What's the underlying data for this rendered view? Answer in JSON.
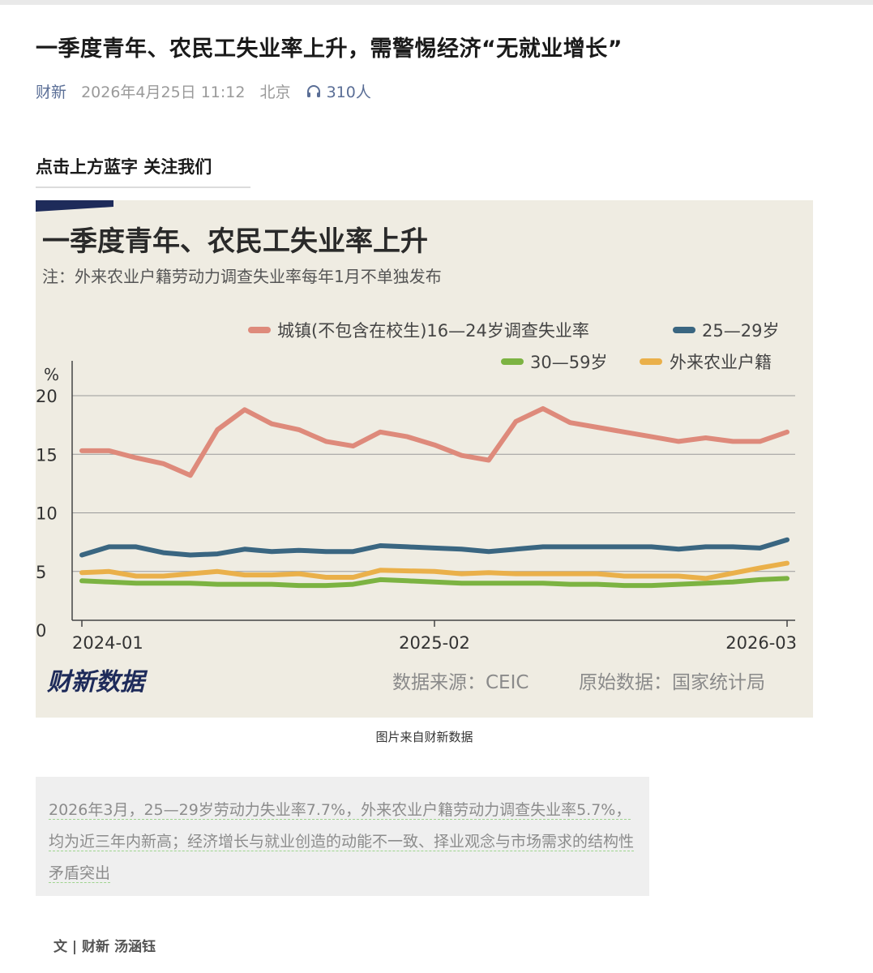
{
  "article": {
    "title": "一季度青年、农民工失业率上升，需警惕经济“无就业增长”",
    "source": "财新",
    "datetime": "2026年4月25日 11:12",
    "location": "北京",
    "listeners": "310人",
    "follow_text": "点击上方蓝字  关注我们",
    "caption": "图片来自财新数据",
    "quote": "2026年3月，25—29岁劳动力失业率7.7%，外来农业户籍劳动力调查失业率5.7%，均为近三年内新高；经济增长与就业创造的动能不一致、择业观念与市场需求的结构性矛盾突出",
    "byline": "文 | 财新 汤涵钰"
  },
  "icons": {
    "listen": "headphones-icon"
  },
  "colors": {
    "chart_bg": "#efece2",
    "series_16_24": "#de8a7b",
    "series_25_29": "#3a6681",
    "series_30_59": "#7cb342",
    "series_migrant": "#eab04a",
    "brand": "#1e2b5a"
  },
  "chart_data": {
    "type": "line",
    "title": "一季度青年、农民工失业率上升",
    "subtitle": "注：外来农业户籍劳动力调查失业率每年1月不单独发布",
    "ylabel": "%",
    "ylim": [
      0,
      20
    ],
    "yticks": [
      "0",
      "5",
      "10",
      "15",
      "20"
    ],
    "xtick_labels": [
      "2024-01",
      "2025-02",
      "2026-03"
    ],
    "x": [
      "2024-01",
      "2024-02",
      "2024-03",
      "2024-04",
      "2024-05",
      "2024-06",
      "2024-07",
      "2024-08",
      "2024-09",
      "2024-10",
      "2024-11",
      "2024-12",
      "2025-01",
      "2025-02",
      "2025-03",
      "2025-04",
      "2025-05",
      "2025-06",
      "2025-07",
      "2025-08",
      "2025-09",
      "2025-10",
      "2025-11",
      "2025-12",
      "2026-01",
      "2026-02",
      "2026-03"
    ],
    "grid": true,
    "legend": "top-right",
    "series": [
      {
        "name": "城镇(不包含在校生)16—24岁调查失业率",
        "color_key": "series_16_24",
        "values": [
          15.3,
          15.3,
          14.7,
          14.2,
          13.2,
          17.1,
          18.8,
          17.6,
          17.1,
          16.1,
          15.7,
          16.9,
          16.5,
          15.8,
          14.9,
          14.5,
          17.8,
          18.9,
          17.7,
          17.3,
          16.9,
          16.5,
          16.1,
          16.4,
          16.1,
          16.1,
          16.9
        ]
      },
      {
        "name": "25—29岁",
        "color_key": "series_25_29",
        "values": [
          6.4,
          7.1,
          7.1,
          6.6,
          6.4,
          6.5,
          6.9,
          6.7,
          6.8,
          6.7,
          6.7,
          7.2,
          7.1,
          7.0,
          6.9,
          6.7,
          6.9,
          7.1,
          7.1,
          7.1,
          7.1,
          7.1,
          6.9,
          7.1,
          7.1,
          7.0,
          7.7
        ]
      },
      {
        "name": "30—59岁",
        "color_key": "series_30_59",
        "values": [
          4.2,
          4.1,
          4.0,
          4.0,
          4.0,
          3.9,
          3.9,
          3.9,
          3.8,
          3.8,
          3.9,
          4.3,
          4.2,
          4.1,
          4.0,
          4.0,
          4.0,
          4.0,
          3.9,
          3.9,
          3.8,
          3.8,
          3.9,
          4.0,
          4.1,
          4.3,
          4.4
        ]
      },
      {
        "name": "外来农业户籍",
        "color_key": "series_migrant",
        "values": [
          4.9,
          5.0,
          4.6,
          4.6,
          4.8,
          5.0,
          4.7,
          4.7,
          4.8,
          4.5,
          4.5,
          5.1,
          null,
          5.0,
          4.8,
          4.9,
          4.8,
          4.8,
          4.8,
          4.8,
          4.6,
          4.6,
          4.6,
          4.4,
          null,
          5.3,
          5.7
        ]
      }
    ],
    "brand_text": "财新数据",
    "source_text": "数据来源：CEIC",
    "origin_text": "原始数据：国家统计局"
  }
}
